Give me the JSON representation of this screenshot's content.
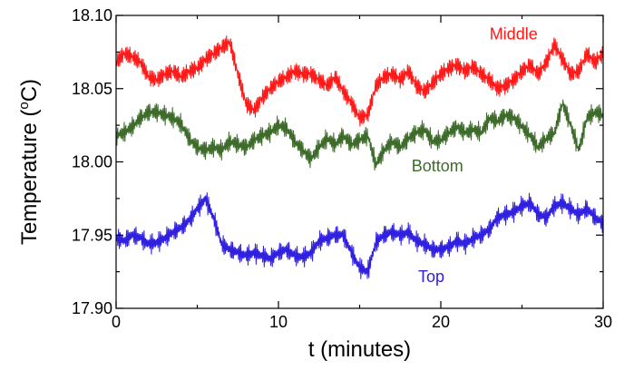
{
  "chart_data": {
    "type": "line",
    "title": "",
    "xlabel": "t (minutes)",
    "ylabel_main": "Temperature (",
    "ylabel_sup": "o",
    "ylabel_end": "C)",
    "xlim": [
      0,
      30
    ],
    "ylim": [
      17.9,
      18.1
    ],
    "x_ticks": [
      0,
      10,
      20,
      30
    ],
    "x_tick_labels": [
      "0",
      "10",
      "20",
      "30"
    ],
    "y_ticks": [
      17.9,
      17.95,
      18.0,
      18.05,
      18.1
    ],
    "y_tick_labels": [
      "17.90",
      "17.95",
      "18.00",
      "18.05",
      "18.10"
    ],
    "grid": false,
    "series": [
      {
        "name": "Middle",
        "color": "#ff1a1a",
        "x": [
          0,
          0.5,
          1,
          1.5,
          2,
          2.5,
          3,
          3.5,
          4,
          4.5,
          5,
          5.5,
          6,
          6.5,
          7,
          7.5,
          8,
          8.5,
          9,
          9.5,
          10,
          10.5,
          11,
          11.5,
          12,
          12.5,
          13,
          13.5,
          14,
          14.5,
          15,
          15.5,
          16,
          16.5,
          17,
          17.5,
          18,
          18.5,
          19,
          19.5,
          20,
          20.5,
          21,
          21.5,
          22,
          22.5,
          23,
          23.5,
          24,
          24.5,
          25,
          25.5,
          26,
          26.5,
          27,
          27.5,
          28,
          28.5,
          29,
          29.5,
          30
        ],
        "values": [
          18.068,
          18.074,
          18.072,
          18.068,
          18.058,
          18.056,
          18.06,
          18.062,
          18.058,
          18.062,
          18.064,
          18.07,
          18.074,
          18.078,
          18.082,
          18.06,
          18.04,
          18.035,
          18.044,
          18.05,
          18.055,
          18.058,
          18.062,
          18.06,
          18.06,
          18.056,
          18.052,
          18.058,
          18.048,
          18.04,
          18.03,
          18.032,
          18.052,
          18.058,
          18.06,
          18.056,
          18.062,
          18.052,
          18.048,
          18.054,
          18.06,
          18.064,
          18.066,
          18.062,
          18.065,
          18.06,
          18.056,
          18.05,
          18.052,
          18.056,
          18.062,
          18.066,
          18.06,
          18.068,
          18.08,
          18.07,
          18.06,
          18.062,
          18.074,
          18.068,
          18.074
        ]
      },
      {
        "name": "Bottom",
        "color": "#3d6b2a",
        "x": [
          0,
          0.5,
          1,
          1.5,
          2,
          2.5,
          3,
          3.5,
          4,
          4.5,
          5,
          5.5,
          6,
          6.5,
          7,
          7.5,
          8,
          8.5,
          9,
          9.5,
          10,
          10.5,
          11,
          11.5,
          12,
          12.5,
          13,
          13.5,
          14,
          14.5,
          15,
          15.5,
          16,
          16.5,
          17,
          17.5,
          18,
          18.5,
          19,
          19.5,
          20,
          20.5,
          21,
          21.5,
          22,
          22.5,
          23,
          23.5,
          24,
          24.5,
          25,
          25.5,
          26,
          26.5,
          27,
          27.5,
          28,
          28.5,
          29,
          29.5,
          30
        ],
        "values": [
          18.018,
          18.02,
          18.024,
          18.03,
          18.034,
          18.034,
          18.032,
          18.03,
          18.026,
          18.016,
          18.01,
          18.008,
          18.01,
          18.008,
          18.014,
          18.012,
          18.01,
          18.015,
          18.018,
          18.02,
          18.025,
          18.023,
          18.014,
          18.008,
          18.002,
          18.01,
          18.016,
          18.012,
          18.018,
          18.012,
          18.015,
          18.018,
          17.998,
          18.008,
          18.014,
          18.01,
          18.016,
          18.02,
          18.022,
          18.014,
          18.015,
          18.02,
          18.024,
          18.02,
          18.022,
          18.02,
          18.03,
          18.028,
          18.032,
          18.03,
          18.024,
          18.018,
          18.01,
          18.016,
          18.02,
          18.04,
          18.025,
          18.008,
          18.03,
          18.034,
          18.032
        ]
      },
      {
        "name": "Top",
        "color": "#3020e0",
        "x": [
          0,
          0.5,
          1,
          1.5,
          2,
          2.5,
          3,
          3.5,
          4,
          4.5,
          5,
          5.5,
          6,
          6.5,
          7,
          7.5,
          8,
          8.5,
          9,
          9.5,
          10,
          10.5,
          11,
          11.5,
          12,
          12.5,
          13,
          13.5,
          14,
          14.5,
          15,
          15.5,
          16,
          16.5,
          17,
          17.5,
          18,
          18.5,
          19,
          19.5,
          20,
          20.5,
          21,
          21.5,
          22,
          22.5,
          23,
          23.5,
          24,
          24.5,
          25,
          25.5,
          26,
          26.5,
          27,
          27.5,
          28,
          28.5,
          29,
          29.5,
          30
        ],
        "values": [
          17.948,
          17.946,
          17.95,
          17.948,
          17.944,
          17.945,
          17.948,
          17.952,
          17.955,
          17.96,
          17.968,
          17.975,
          17.962,
          17.944,
          17.94,
          17.938,
          17.936,
          17.938,
          17.936,
          17.934,
          17.938,
          17.94,
          17.936,
          17.935,
          17.938,
          17.946,
          17.948,
          17.95,
          17.95,
          17.938,
          17.928,
          17.925,
          17.945,
          17.95,
          17.952,
          17.95,
          17.952,
          17.946,
          17.944,
          17.94,
          17.94,
          17.942,
          17.946,
          17.944,
          17.948,
          17.95,
          17.954,
          17.962,
          17.964,
          17.966,
          17.97,
          17.972,
          17.964,
          17.962,
          17.97,
          17.972,
          17.968,
          17.964,
          17.968,
          17.962,
          17.958
        ]
      }
    ],
    "series_label_positions": [
      "top-right",
      "middle-right",
      "bottom-center"
    ]
  }
}
